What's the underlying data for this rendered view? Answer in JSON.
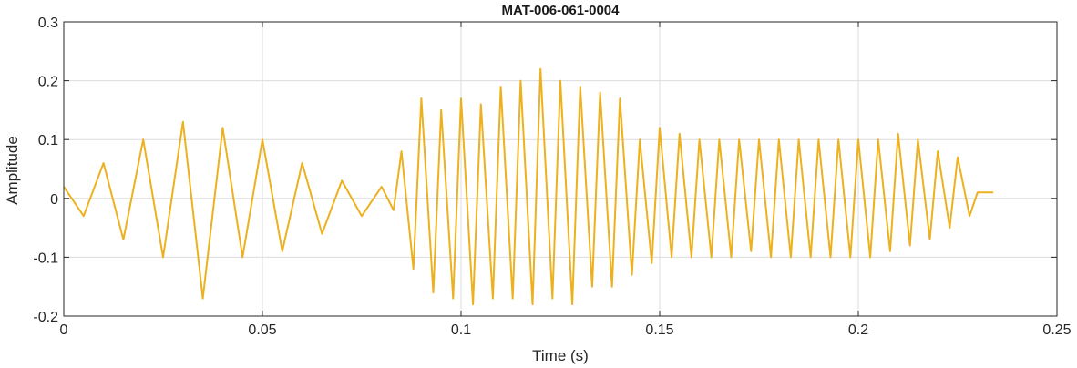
{
  "chart_data": {
    "type": "line",
    "title": "MAT-006-061-0004",
    "xlabel": "Time (s)",
    "ylabel": "Amplitude",
    "xlim": [
      0,
      0.25
    ],
    "ylim": [
      -0.2,
      0.3
    ],
    "xticks": [
      0,
      0.05,
      0.1,
      0.15,
      0.2,
      0.25
    ],
    "xtick_labels": [
      "0",
      "0.05",
      "0.1",
      "0.15",
      "0.2",
      "0.25"
    ],
    "yticks": [
      -0.2,
      -0.1,
      0,
      0.1,
      0.2,
      0.3
    ],
    "ytick_labels": [
      "-0.2",
      "-0.1",
      "0",
      "0.1",
      "0.2",
      "0.3"
    ],
    "grid": true,
    "legend": "none",
    "colors": {
      "line": "#EDB120",
      "axes": "#262626",
      "grid": "#dcdcdc"
    },
    "series": [
      {
        "x": [
          0,
          0.005,
          0.01,
          0.015,
          0.02,
          0.025,
          0.03,
          0.035,
          0.04,
          0.045,
          0.05,
          0.055,
          0.06,
          0.065,
          0.07,
          0.075,
          0.08,
          0.083,
          0.085,
          0.088,
          0.09,
          0.093,
          0.095,
          0.098,
          0.1,
          0.103,
          0.105,
          0.108,
          0.11,
          0.113,
          0.115,
          0.118,
          0.12,
          0.123,
          0.125,
          0.128,
          0.13,
          0.133,
          0.135,
          0.138,
          0.14,
          0.143,
          0.145,
          0.148,
          0.15,
          0.153,
          0.155,
          0.158,
          0.16,
          0.163,
          0.165,
          0.168,
          0.17,
          0.173,
          0.175,
          0.178,
          0.18,
          0.183,
          0.185,
          0.188,
          0.19,
          0.193,
          0.195,
          0.198,
          0.2,
          0.203,
          0.205,
          0.208,
          0.21,
          0.213,
          0.215,
          0.218,
          0.22,
          0.223,
          0.225,
          0.228,
          0.23,
          0.234
        ],
        "y": [
          0.02,
          -0.03,
          0.06,
          -0.07,
          0.1,
          -0.1,
          0.13,
          -0.17,
          0.12,
          -0.1,
          0.1,
          -0.09,
          0.06,
          -0.06,
          0.03,
          -0.03,
          0.02,
          -0.02,
          0.08,
          -0.12,
          0.17,
          -0.16,
          0.15,
          -0.17,
          0.17,
          -0.18,
          0.16,
          -0.17,
          0.19,
          -0.17,
          0.2,
          -0.18,
          0.22,
          -0.17,
          0.2,
          -0.18,
          0.19,
          -0.15,
          0.18,
          -0.15,
          0.17,
          -0.13,
          0.1,
          -0.11,
          0.12,
          -0.1,
          0.11,
          -0.1,
          0.1,
          -0.1,
          0.1,
          -0.1,
          0.1,
          -0.09,
          0.1,
          -0.1,
          0.1,
          -0.1,
          0.1,
          -0.1,
          0.1,
          -0.1,
          0.1,
          -0.1,
          0.1,
          -0.1,
          0.1,
          -0.09,
          0.11,
          -0.08,
          0.1,
          -0.07,
          0.08,
          -0.05,
          0.07,
          -0.03,
          0.01,
          0.01
        ]
      }
    ]
  }
}
